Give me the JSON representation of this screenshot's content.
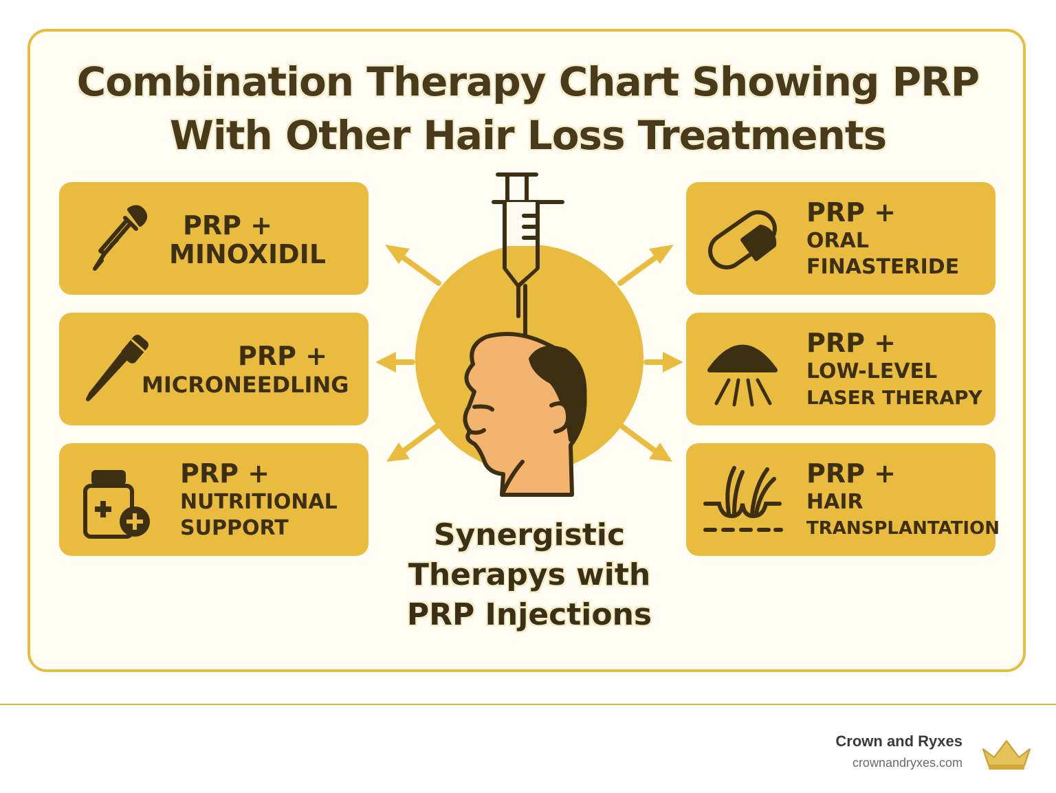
{
  "title": {
    "line1": "Combination Therapy Chart Showing PRP",
    "line2": "With Other Hair Loss Treatments"
  },
  "center": {
    "caption_line1": "Synergistic",
    "caption_line2": "Therapys with",
    "caption_line3": "PRP Injections",
    "icon": "syringe-head-icon"
  },
  "treatments": [
    {
      "line1": "PRP +",
      "line2": "MINOXIDIL",
      "line3": "",
      "icon": "dropper-icon"
    },
    {
      "line1": "PRP +",
      "line2": "MICRONEEDLING",
      "line3": "",
      "icon": "microneedling-pen-icon"
    },
    {
      "line1": "PRP +",
      "line2": "NUTRITIONAL",
      "line3": "SUPPORT",
      "icon": "supplement-bottle-icon"
    },
    {
      "line1": "PRP +",
      "line2": "ORAL",
      "line3": "FINASTERIDE",
      "icon": "pill-capsule-icon"
    },
    {
      "line1": "PRP +",
      "line2": "LOW-LEVEL",
      "line3": "LASER THERAPY",
      "icon": "laser-cap-icon"
    },
    {
      "line1": "PRP +",
      "line2": "HAIR",
      "line3": "TRANSPLANTATION",
      "icon": "hair-follicle-icon"
    }
  ],
  "footer": {
    "brand_name": "Crown and Ryxes",
    "brand_url": "crownandryxes.com",
    "logo_icon": "crown-icon"
  },
  "colors": {
    "accent": "#e9bb3f",
    "text_dark": "#3d2f12",
    "skin": "#f2b46e",
    "frame": "#e8bc3e"
  }
}
